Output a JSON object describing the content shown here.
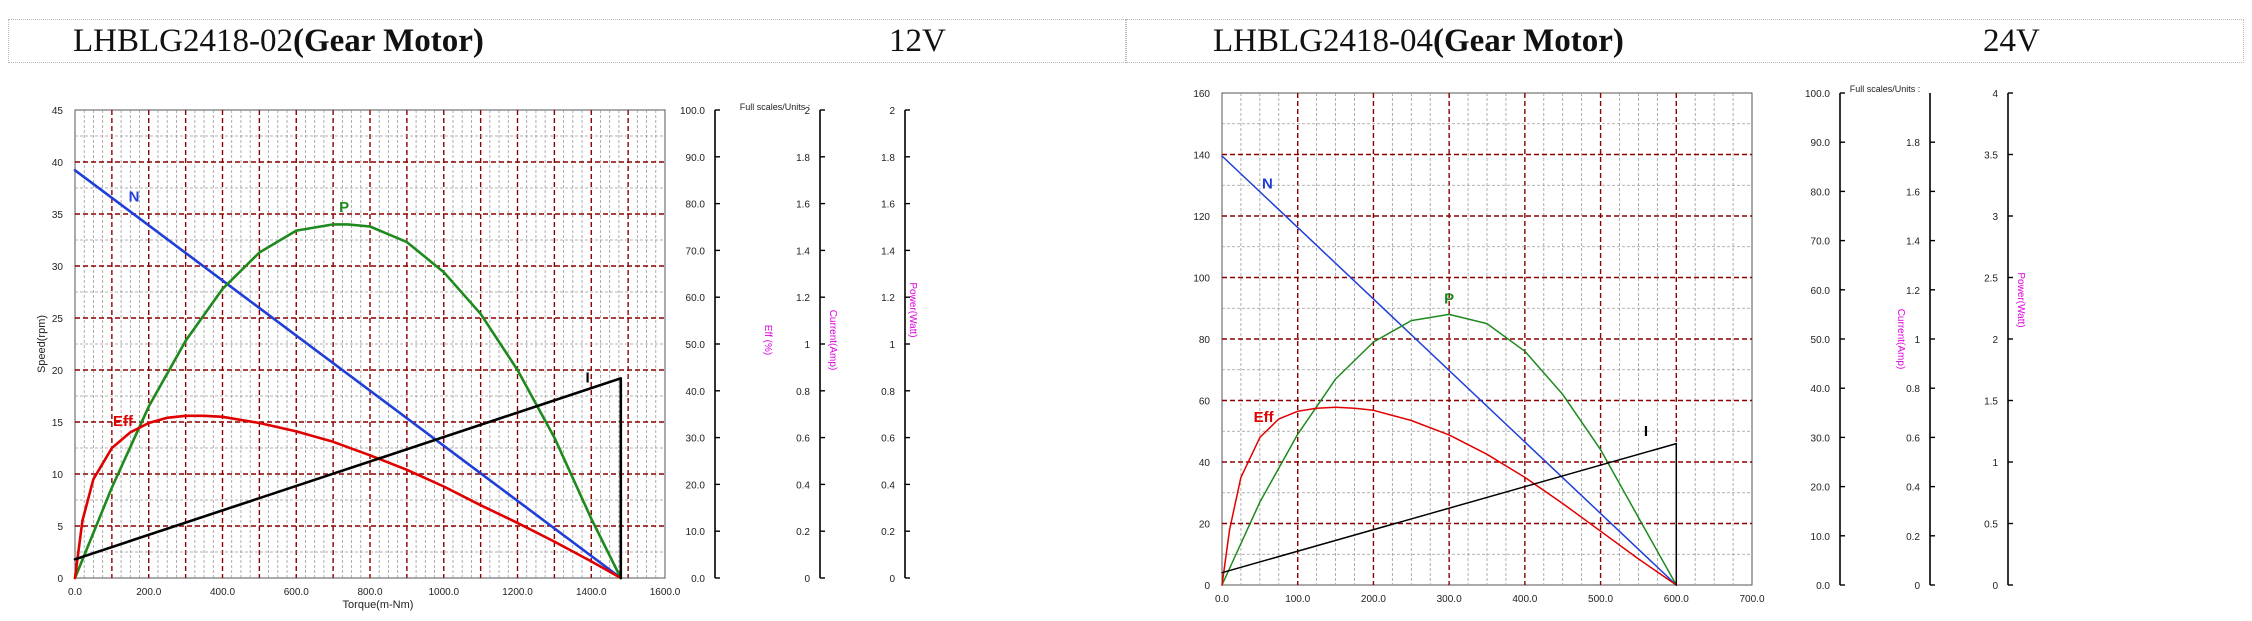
{
  "panels": [
    {
      "model": "LHBLG2418-02",
      "type_label": "(Gear Motor)",
      "voltage": "12V"
    },
    {
      "model": "LHBLG2418-04",
      "type_label": "(Gear Motor)",
      "voltage": "24V"
    }
  ],
  "colors": {
    "speed": "#1f3fd8",
    "power": "#1e8a1e",
    "efficiency": "#e00000",
    "current": "#000000",
    "major_grid": "#8b0000",
    "minor_grid": "#9a9a9a",
    "units_label": "#e000e0"
  },
  "chart_data": [
    {
      "type": "line",
      "xlabel": "Torque(m-Nm)",
      "ylabel": "Speed(rpm)",
      "xlim": [
        0,
        1600
      ],
      "x_ticks": [
        "0.0",
        "200.0",
        "400.0",
        "600.0",
        "800.0",
        "1000.0",
        "1200.0",
        "1400.0",
        "1600.0"
      ],
      "y_left_lim": [
        0,
        45
      ],
      "y_left_ticks": [
        "0",
        "5",
        "10",
        "15",
        "20",
        "25",
        "30",
        "35",
        "40",
        "45"
      ],
      "axis2": {
        "label": "Eff (%)",
        "ticks": [
          "0.0",
          "10.0",
          "20.0",
          "30.0",
          "40.0",
          "50.0",
          "60.0",
          "70.0",
          "80.0",
          "90.0",
          "100.0"
        ]
      },
      "axis3": {
        "header": "Full scales/Units :",
        "label": "Current(Amp)",
        "ticks": [
          "0",
          "0.2",
          "0.4",
          "0.6",
          "0.8",
          "1",
          "1.2",
          "1.4",
          "1.6",
          "1.8",
          "2"
        ]
      },
      "axis4": {
        "label": "Power(Watt)",
        "ticks": [
          "0",
          "0.2",
          "0.4",
          "0.6",
          "0.8",
          "1",
          "1.2",
          "1.4",
          "1.6",
          "1.8",
          "2"
        ]
      },
      "series": [
        {
          "name": "N",
          "x": [
            0,
            1480
          ],
          "y": [
            39.2,
            0
          ]
        },
        {
          "name": "P",
          "x": [
            0,
            100,
            200,
            300,
            400,
            500,
            600,
            700,
            740,
            800,
            900,
            1000,
            1100,
            1200,
            1300,
            1400,
            1480
          ],
          "y": [
            0,
            8.7,
            16.5,
            22.8,
            27.8,
            31.3,
            33.4,
            34.0,
            34.0,
            33.8,
            32.3,
            29.4,
            25.4,
            20.0,
            13.5,
            5.7,
            0
          ]
        },
        {
          "name": "Eff",
          "x": [
            0,
            20,
            50,
            100,
            150,
            200,
            250,
            300,
            350,
            400,
            500,
            600,
            700,
            800,
            900,
            1000,
            1100,
            1200,
            1300,
            1400,
            1480
          ],
          "y": [
            0,
            5.5,
            9.5,
            12.5,
            14.0,
            14.9,
            15.4,
            15.6,
            15.6,
            15.5,
            14.9,
            14.1,
            13.1,
            11.8,
            10.4,
            8.8,
            7.0,
            5.3,
            3.5,
            1.6,
            0
          ]
        },
        {
          "name": "I",
          "x": [
            0,
            1480,
            1480
          ],
          "y": [
            1.8,
            19.2,
            0
          ]
        }
      ],
      "series_labels": [
        {
          "name": "N",
          "x": 160,
          "y": 36.2
        },
        {
          "name": "P",
          "x": 730,
          "y": 35.2
        },
        {
          "name": "Eff",
          "x": 130,
          "y": 14.6
        },
        {
          "name": "I",
          "x": 1390,
          "y": 18.8
        }
      ]
    },
    {
      "type": "line",
      "xlabel": "",
      "ylabel": "",
      "xlim": [
        0,
        700
      ],
      "x_ticks": [
        "0.0",
        "100.0",
        "200.0",
        "300.0",
        "400.0",
        "500.0",
        "600.0",
        "700.0"
      ],
      "y_left_lim": [
        0,
        160
      ],
      "y_left_ticks": [
        "0",
        "20",
        "40",
        "60",
        "80",
        "100",
        "120",
        "140",
        "160"
      ],
      "axis2": {
        "label": "",
        "ticks": [
          "0.0",
          "10.0",
          "20.0",
          "30.0",
          "40.0",
          "50.0",
          "60.0",
          "70.0",
          "80.0",
          "90.0",
          "100.0"
        ]
      },
      "axis3": {
        "header": "Full scales/Units :",
        "label": "Current(Amp)",
        "ticks": [
          "0",
          "0.2",
          "0.4",
          "0.6",
          "0.8",
          "1",
          "1.2",
          "1.4",
          "1.6",
          "1.8"
        ]
      },
      "axis4": {
        "label": "Power(Watt)",
        "ticks": [
          "0",
          "0.5",
          "1",
          "1.5",
          "2",
          "2.5",
          "3",
          "3.5",
          "4"
        ]
      },
      "series": [
        {
          "name": "N",
          "x": [
            0,
            600
          ],
          "y": [
            139.5,
            0
          ]
        },
        {
          "name": "P",
          "x": [
            0,
            50,
            100,
            150,
            200,
            250,
            300,
            350,
            400,
            450,
            500,
            550,
            600
          ],
          "y": [
            0,
            27,
            49,
            67,
            79,
            86,
            88,
            85,
            76,
            62,
            44,
            22,
            0
          ]
        },
        {
          "name": "Eff",
          "x": [
            0,
            10,
            25,
            50,
            75,
            100,
            125,
            150,
            175,
            200,
            250,
            300,
            350,
            400,
            450,
            500,
            550,
            600
          ],
          "y": [
            0,
            18,
            35,
            48,
            54,
            56.5,
            57.5,
            57.8,
            57.5,
            56.8,
            53.5,
            48.8,
            42.5,
            35,
            26.5,
            17.5,
            8.5,
            0
          ]
        },
        {
          "name": "I",
          "x": [
            0,
            600,
            600
          ],
          "y": [
            4,
            46,
            0
          ]
        }
      ],
      "series_labels": [
        {
          "name": "N",
          "x": 60,
          "y": 129
        },
        {
          "name": "P",
          "x": 300,
          "y": 91.5
        },
        {
          "name": "Eff",
          "x": 55,
          "y": 53
        },
        {
          "name": "I",
          "x": 560,
          "y": 48.5
        }
      ]
    }
  ]
}
